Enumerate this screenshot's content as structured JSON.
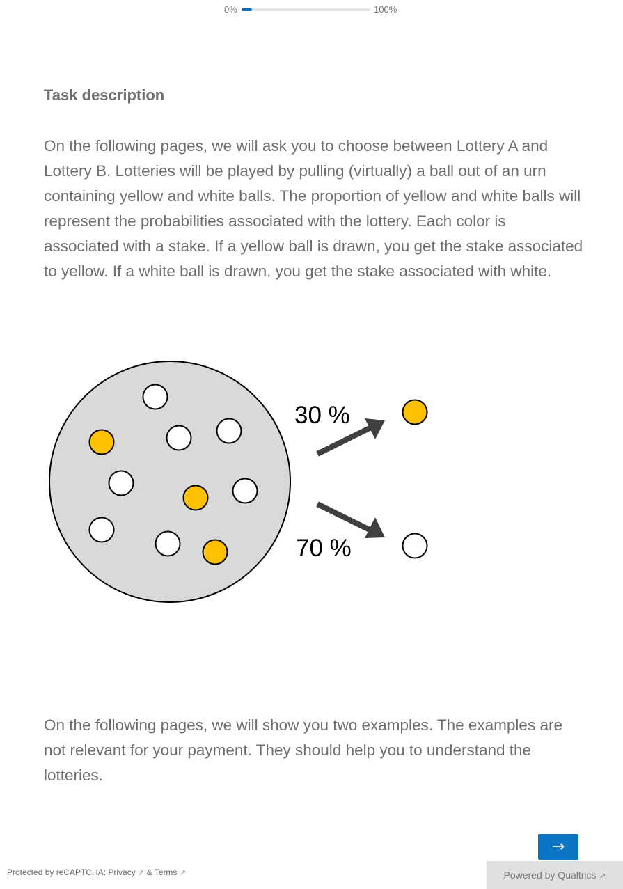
{
  "progress": {
    "start_label": "0%",
    "end_label": "100%",
    "value": 0.08
  },
  "task": {
    "heading": "Task description",
    "paragraph1": "On the following pages, we will ask you to choose between Lottery A and Lottery B. Lotteries will be played by pulling (virtually) a ball out of an urn containing yellow and white balls. The proportion of yellow and white balls will represent the probabilities associated with the lottery. Each color is associated with a stake. If a yellow ball is drawn, you get the stake associated to yellow. If a white ball is drawn, you get the stake associated with white.",
    "paragraph2": "On the following pages, we will show you two examples. The examples are not relevant for your payment. They should help you to understand the lotteries."
  },
  "figure": {
    "yellow_label": "30 %",
    "white_label": "70 %",
    "colors": {
      "urn": "#d9d9d9",
      "yellow": "#ffc000",
      "white": "#ffffff",
      "arrow": "#404040"
    }
  },
  "navigation": {
    "next_label": "→"
  },
  "footer": {
    "recaptcha_prefix": "Protected by reCAPTCHA: ",
    "privacy_label": "Privacy",
    "amp": " & ",
    "terms_label": "Terms",
    "powered_label": "Powered by Qualtrics",
    "external_icon": "external-link-icon"
  }
}
